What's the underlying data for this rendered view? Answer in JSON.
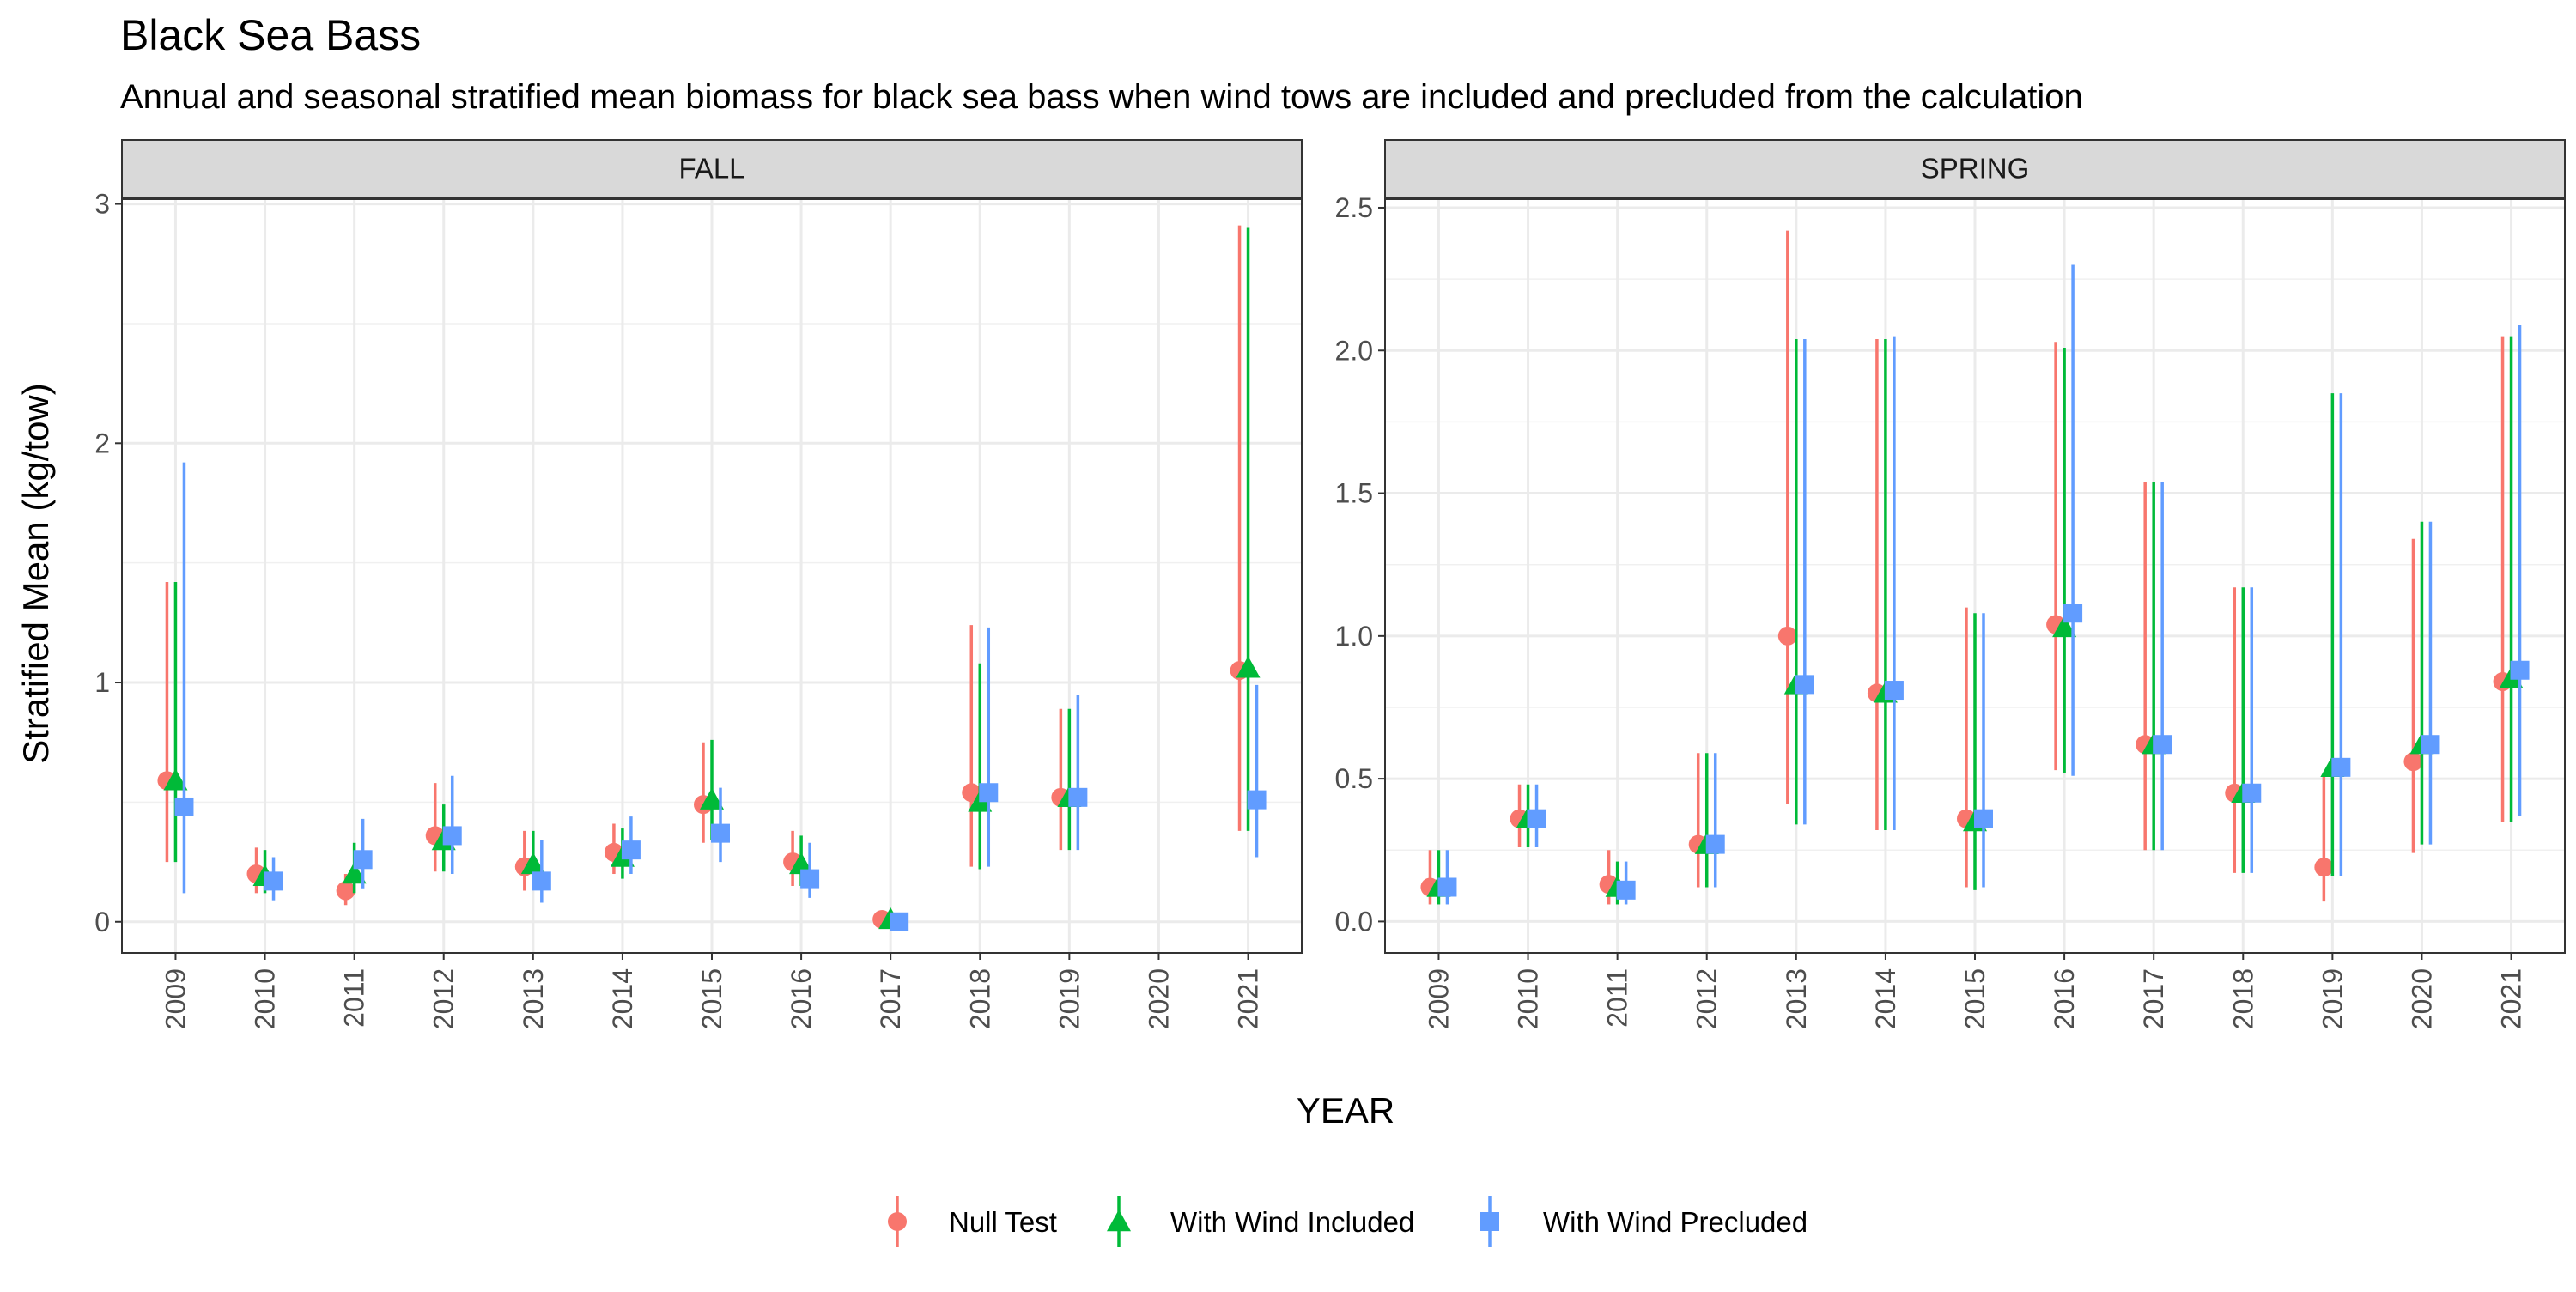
{
  "title": "Black Sea Bass",
  "subtitle": "Annual and seasonal stratified mean biomass for black sea bass when wind tows are included and precluded from the calculation",
  "colors": {
    "null_test": "#F8766D",
    "with_wind_included": "#00BA38",
    "with_wind_precluded": "#619CFF"
  },
  "chart_data": {
    "type": "scatter",
    "subtype": "point-range with error bars, faceted",
    "xlabel": "YEAR",
    "ylabel": "Stratified Mean (kg/tow)",
    "grid": true,
    "legend_position": "bottom",
    "legend": [
      {
        "name": "Null Test",
        "shape": "circle",
        "color": "#F8766D"
      },
      {
        "name": "With Wind Included",
        "shape": "triangle",
        "color": "#00BA38"
      },
      {
        "name": "With Wind Precluded",
        "shape": "square",
        "color": "#619CFF"
      }
    ],
    "facets": [
      {
        "label": "FALL",
        "categories": [
          "2009",
          "2010",
          "2011",
          "2012",
          "2013",
          "2014",
          "2015",
          "2016",
          "2017",
          "2018",
          "2019",
          "2020",
          "2021"
        ],
        "ylim": [
          -0.13,
          3.02
        ],
        "yticks": [
          0,
          1,
          2,
          3
        ],
        "yticks_labels": [
          "0",
          "1",
          "2",
          "3"
        ],
        "series": [
          {
            "name": "Null Test",
            "points": [
              {
                "x": "2009",
                "y": 0.59,
                "lo": 0.25,
                "hi": 1.42
              },
              {
                "x": "2010",
                "y": 0.2,
                "lo": 0.12,
                "hi": 0.31
              },
              {
                "x": "2011",
                "y": 0.13,
                "lo": 0.07,
                "hi": 0.2
              },
              {
                "x": "2012",
                "y": 0.36,
                "lo": 0.21,
                "hi": 0.58
              },
              {
                "x": "2013",
                "y": 0.23,
                "lo": 0.13,
                "hi": 0.38
              },
              {
                "x": "2014",
                "y": 0.29,
                "lo": 0.2,
                "hi": 0.41
              },
              {
                "x": "2015",
                "y": 0.49,
                "lo": 0.33,
                "hi": 0.75
              },
              {
                "x": "2016",
                "y": 0.25,
                "lo": 0.15,
                "hi": 0.38
              },
              {
                "x": "2017",
                "y": 0.01,
                "lo": 0.0,
                "hi": 0.02
              },
              {
                "x": "2018",
                "y": 0.54,
                "lo": 0.23,
                "hi": 1.24
              },
              {
                "x": "2019",
                "y": 0.52,
                "lo": 0.3,
                "hi": 0.89
              },
              {
                "x": "2021",
                "y": 1.05,
                "lo": 0.38,
                "hi": 2.91
              }
            ]
          },
          {
            "name": "With Wind Included",
            "points": [
              {
                "x": "2009",
                "y": 0.59,
                "lo": 0.25,
                "hi": 1.42
              },
              {
                "x": "2010",
                "y": 0.19,
                "lo": 0.12,
                "hi": 0.3
              },
              {
                "x": "2011",
                "y": 0.2,
                "lo": 0.12,
                "hi": 0.33
              },
              {
                "x": "2012",
                "y": 0.34,
                "lo": 0.21,
                "hi": 0.49
              },
              {
                "x": "2013",
                "y": 0.24,
                "lo": 0.14,
                "hi": 0.38
              },
              {
                "x": "2014",
                "y": 0.27,
                "lo": 0.18,
                "hi": 0.39
              },
              {
                "x": "2015",
                "y": 0.51,
                "lo": 0.34,
                "hi": 0.76
              },
              {
                "x": "2016",
                "y": 0.24,
                "lo": 0.15,
                "hi": 0.36
              },
              {
                "x": "2017",
                "y": 0.01,
                "lo": 0.0,
                "hi": 0.02
              },
              {
                "x": "2018",
                "y": 0.5,
                "lo": 0.22,
                "hi": 1.08
              },
              {
                "x": "2019",
                "y": 0.52,
                "lo": 0.3,
                "hi": 0.89
              },
              {
                "x": "2021",
                "y": 1.06,
                "lo": 0.38,
                "hi": 2.9
              }
            ]
          },
          {
            "name": "With Wind Precluded",
            "points": [
              {
                "x": "2009",
                "y": 0.48,
                "lo": 0.12,
                "hi": 1.92
              },
              {
                "x": "2010",
                "y": 0.17,
                "lo": 0.09,
                "hi": 0.27
              },
              {
                "x": "2011",
                "y": 0.26,
                "lo": 0.14,
                "hi": 0.43
              },
              {
                "x": "2012",
                "y": 0.36,
                "lo": 0.2,
                "hi": 0.61
              },
              {
                "x": "2013",
                "y": 0.17,
                "lo": 0.08,
                "hi": 0.34
              },
              {
                "x": "2014",
                "y": 0.3,
                "lo": 0.2,
                "hi": 0.44
              },
              {
                "x": "2015",
                "y": 0.37,
                "lo": 0.25,
                "hi": 0.56
              },
              {
                "x": "2016",
                "y": 0.18,
                "lo": 0.1,
                "hi": 0.33
              },
              {
                "x": "2017",
                "y": 0.0,
                "lo": 0.0,
                "hi": 0.01
              },
              {
                "x": "2018",
                "y": 0.54,
                "lo": 0.23,
                "hi": 1.23
              },
              {
                "x": "2019",
                "y": 0.52,
                "lo": 0.3,
                "hi": 0.95
              },
              {
                "x": "2021",
                "y": 0.51,
                "lo": 0.27,
                "hi": 0.99
              }
            ]
          }
        ]
      },
      {
        "label": "SPRING",
        "categories": [
          "2009",
          "2010",
          "2011",
          "2012",
          "2013",
          "2014",
          "2015",
          "2016",
          "2017",
          "2018",
          "2019",
          "2020",
          "2021"
        ],
        "ylim": [
          -0.11,
          2.53
        ],
        "yticks": [
          0,
          0.5,
          1,
          1.5,
          2,
          2.5
        ],
        "yticks_labels": [
          "0.0",
          "0.5",
          "1.0",
          "1.5",
          "2.0",
          "2.5"
        ],
        "series": [
          {
            "name": "Null Test",
            "points": [
              {
                "x": "2009",
                "y": 0.12,
                "lo": 0.06,
                "hi": 0.25
              },
              {
                "x": "2010",
                "y": 0.36,
                "lo": 0.26,
                "hi": 0.48
              },
              {
                "x": "2011",
                "y": 0.13,
                "lo": 0.06,
                "hi": 0.25
              },
              {
                "x": "2012",
                "y": 0.27,
                "lo": 0.12,
                "hi": 0.59
              },
              {
                "x": "2013",
                "y": 1.0,
                "lo": 0.41,
                "hi": 2.42
              },
              {
                "x": "2014",
                "y": 0.8,
                "lo": 0.32,
                "hi": 2.04
              },
              {
                "x": "2015",
                "y": 0.36,
                "lo": 0.12,
                "hi": 1.1
              },
              {
                "x": "2016",
                "y": 1.04,
                "lo": 0.53,
                "hi": 2.03
              },
              {
                "x": "2017",
                "y": 0.62,
                "lo": 0.25,
                "hi": 1.54
              },
              {
                "x": "2018",
                "y": 0.45,
                "lo": 0.17,
                "hi": 1.17
              },
              {
                "x": "2019",
                "y": 0.19,
                "lo": 0.07,
                "hi": 0.52
              },
              {
                "x": "2020",
                "y": 0.56,
                "lo": 0.24,
                "hi": 1.34
              },
              {
                "x": "2021",
                "y": 0.84,
                "lo": 0.35,
                "hi": 2.05
              }
            ]
          },
          {
            "name": "With Wind Included",
            "points": [
              {
                "x": "2009",
                "y": 0.12,
                "lo": 0.06,
                "hi": 0.25
              },
              {
                "x": "2010",
                "y": 0.36,
                "lo": 0.26,
                "hi": 0.48
              },
              {
                "x": "2011",
                "y": 0.12,
                "lo": 0.06,
                "hi": 0.21
              },
              {
                "x": "2012",
                "y": 0.27,
                "lo": 0.12,
                "hi": 0.59
              },
              {
                "x": "2013",
                "y": 0.83,
                "lo": 0.34,
                "hi": 2.04
              },
              {
                "x": "2014",
                "y": 0.8,
                "lo": 0.32,
                "hi": 2.04
              },
              {
                "x": "2015",
                "y": 0.35,
                "lo": 0.11,
                "hi": 1.08
              },
              {
                "x": "2016",
                "y": 1.03,
                "lo": 0.52,
                "hi": 2.01
              },
              {
                "x": "2017",
                "y": 0.62,
                "lo": 0.25,
                "hi": 1.54
              },
              {
                "x": "2018",
                "y": 0.45,
                "lo": 0.17,
                "hi": 1.17
              },
              {
                "x": "2019",
                "y": 0.54,
                "lo": 0.16,
                "hi": 1.85
              },
              {
                "x": "2020",
                "y": 0.62,
                "lo": 0.27,
                "hi": 1.4
              },
              {
                "x": "2021",
                "y": 0.85,
                "lo": 0.35,
                "hi": 2.05
              }
            ]
          },
          {
            "name": "With Wind Precluded",
            "points": [
              {
                "x": "2009",
                "y": 0.12,
                "lo": 0.06,
                "hi": 0.25
              },
              {
                "x": "2010",
                "y": 0.36,
                "lo": 0.26,
                "hi": 0.48
              },
              {
                "x": "2011",
                "y": 0.11,
                "lo": 0.06,
                "hi": 0.21
              },
              {
                "x": "2012",
                "y": 0.27,
                "lo": 0.12,
                "hi": 0.59
              },
              {
                "x": "2013",
                "y": 0.83,
                "lo": 0.34,
                "hi": 2.04
              },
              {
                "x": "2014",
                "y": 0.81,
                "lo": 0.32,
                "hi": 2.05
              },
              {
                "x": "2015",
                "y": 0.36,
                "lo": 0.12,
                "hi": 1.08
              },
              {
                "x": "2016",
                "y": 1.08,
                "lo": 0.51,
                "hi": 2.3
              },
              {
                "x": "2017",
                "y": 0.62,
                "lo": 0.25,
                "hi": 1.54
              },
              {
                "x": "2018",
                "y": 0.45,
                "lo": 0.17,
                "hi": 1.17
              },
              {
                "x": "2019",
                "y": 0.54,
                "lo": 0.16,
                "hi": 1.85
              },
              {
                "x": "2020",
                "y": 0.62,
                "lo": 0.27,
                "hi": 1.4
              },
              {
                "x": "2021",
                "y": 0.88,
                "lo": 0.37,
                "hi": 2.09
              }
            ]
          }
        ]
      }
    ]
  }
}
